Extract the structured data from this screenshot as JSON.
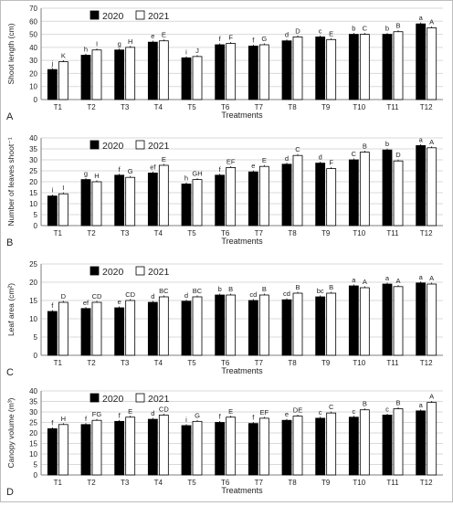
{
  "figure": {
    "panel_letters": [
      "A",
      "B",
      "C",
      "D"
    ],
    "legend_labels": [
      "2020",
      "2021"
    ],
    "colors": {
      "bar_2020": "#000000",
      "bar_2021": "#ffffff",
      "bar_outline": "#000000",
      "grid": "#d9d9d9"
    }
  },
  "chart_data": [
    {
      "type": "bar",
      "panel": "A",
      "ylabel": "Shoot length (cm)",
      "xlabel": "Treatments",
      "ylim": [
        0,
        70
      ],
      "yticks": [
        0,
        10,
        20,
        30,
        40,
        50,
        60,
        70
      ],
      "grid": true,
      "legend_position": "top-left",
      "categories": [
        "T1",
        "T2",
        "T3",
        "T4",
        "T5",
        "T6",
        "T7",
        "T8",
        "T9",
        "T10",
        "T11",
        "T12"
      ],
      "series": [
        {
          "name": "2020",
          "values": [
            23,
            34,
            38,
            44,
            32,
            42,
            41,
            45,
            48,
            50,
            50,
            58
          ],
          "labels": [
            "j",
            "h",
            "g",
            "e",
            "i",
            "f",
            "f",
            "d",
            "c",
            "b",
            "b",
            "a"
          ]
        },
        {
          "name": "2021",
          "values": [
            29,
            38,
            40,
            45,
            33,
            43,
            42,
            48,
            46,
            50,
            52,
            55
          ],
          "labels": [
            "K",
            "I",
            "H",
            "E",
            "J",
            "F",
            "G",
            "D",
            "E",
            "C",
            "B",
            "A"
          ]
        }
      ]
    },
    {
      "type": "bar",
      "panel": "B",
      "ylabel": "Number of leaves shoot⁻¹",
      "xlabel": "Treatments",
      "ylim": [
        0,
        40
      ],
      "yticks": [
        0,
        5,
        10,
        15,
        20,
        25,
        30,
        35,
        40
      ],
      "grid": true,
      "legend_position": "top-left",
      "categories": [
        "T1",
        "T2",
        "T3",
        "T4",
        "T5",
        "T6",
        "T7",
        "T8",
        "T9",
        "T10",
        "T11",
        "T12"
      ],
      "series": [
        {
          "name": "2020",
          "values": [
            13.5,
            21,
            23,
            24,
            19,
            23,
            24.5,
            28,
            28.5,
            30,
            34.5,
            36.5
          ],
          "labels": [
            "i",
            "g",
            "f",
            "ef",
            "h",
            "f",
            "e",
            "d",
            "d",
            "C",
            "b",
            "a"
          ]
        },
        {
          "name": "2021",
          "values": [
            14.5,
            20,
            22,
            27.5,
            21,
            26.5,
            27,
            32,
            26,
            33.5,
            29.5,
            35.5
          ],
          "labels": [
            "I",
            "H",
            "G",
            "E",
            "GH",
            "EF",
            "E",
            "C",
            "F",
            "B",
            "D",
            "A"
          ]
        }
      ]
    },
    {
      "type": "bar",
      "panel": "C",
      "ylabel": "Leaf area (cm²)",
      "xlabel": "Treatments",
      "ylim": [
        0,
        25
      ],
      "yticks": [
        0,
        5,
        10,
        15,
        20,
        25
      ],
      "grid": true,
      "legend_position": "top-left",
      "categories": [
        "T1",
        "T2",
        "T3",
        "T4",
        "T5",
        "T6",
        "T7",
        "T8",
        "T9",
        "T10",
        "T11",
        "T12"
      ],
      "series": [
        {
          "name": "2020",
          "values": [
            12,
            12.8,
            13,
            14.5,
            14.8,
            16.5,
            15,
            15.2,
            16,
            19,
            19.5,
            19.8
          ],
          "labels": [
            "f",
            "ef",
            "e",
            "d",
            "d",
            "b",
            "cd",
            "cd",
            "bc",
            "a",
            "a",
            "a"
          ]
        },
        {
          "name": "2021",
          "values": [
            14.5,
            14.5,
            15,
            16,
            16,
            16.5,
            16.5,
            17,
            17,
            18.5,
            18.8,
            19.5
          ],
          "labels": [
            "D",
            "CD",
            "CD",
            "BC",
            "BC",
            "B",
            "B",
            "B",
            "B",
            "A",
            "A",
            "A"
          ]
        }
      ]
    },
    {
      "type": "bar",
      "panel": "D",
      "ylabel": "Canopy volume (m³)",
      "xlabel": "Treatments",
      "ylim": [
        0,
        40
      ],
      "yticks": [
        0,
        5,
        10,
        15,
        20,
        25,
        30,
        35,
        40
      ],
      "grid": true,
      "legend_position": "top-left",
      "categories": [
        "T1",
        "T2",
        "T3",
        "T4",
        "T5",
        "T6",
        "T7",
        "T8",
        "T9",
        "T10",
        "T11",
        "T12"
      ],
      "series": [
        {
          "name": "2020",
          "values": [
            22,
            24,
            25.5,
            26.5,
            23.5,
            25,
            24.5,
            26,
            27,
            27.5,
            28.5,
            30.5
          ],
          "labels": [
            "f",
            "f",
            "f",
            "d",
            "i",
            "f",
            "f",
            "e",
            "c",
            "c",
            "c",
            "a"
          ]
        },
        {
          "name": "2021",
          "values": [
            24,
            26,
            27.5,
            28.5,
            25.5,
            27.5,
            27,
            28,
            29.5,
            31,
            31.5,
            34.5
          ],
          "labels": [
            "H",
            "FG",
            "E",
            "CD",
            "G",
            "E",
            "EF",
            "DE",
            "C",
            "B",
            "B",
            "A"
          ]
        }
      ]
    }
  ]
}
